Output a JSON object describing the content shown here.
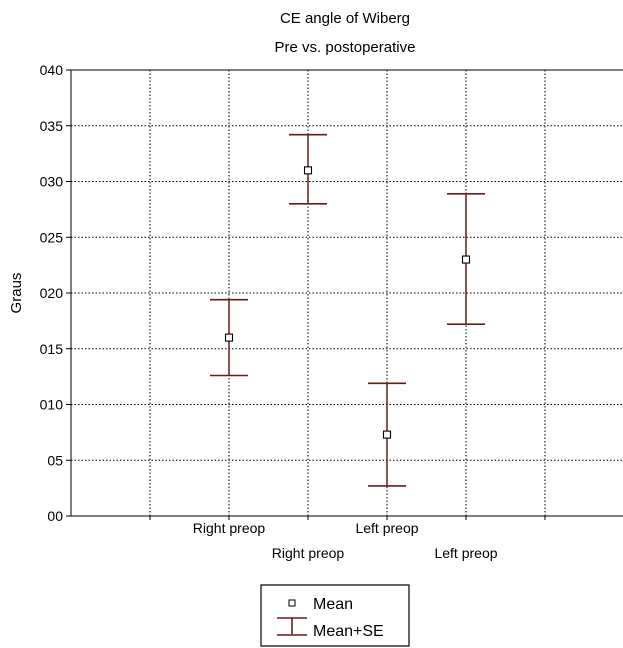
{
  "chart_data": {
    "type": "errorbar",
    "title": "CE angle of Wiberg",
    "subtitle": "Pre vs. postoperative",
    "ylabel": "Graus",
    "xlabel": "",
    "ylim": [
      0,
      40
    ],
    "yticks": [
      0,
      5,
      10,
      15,
      20,
      25,
      30,
      35,
      40
    ],
    "ytick_labels": [
      "00",
      "05",
      "010",
      "015",
      "020",
      "025",
      "030",
      "035",
      "040"
    ],
    "grid": true,
    "grid_style": "dotted",
    "x_slots": 7,
    "points": [
      {
        "category": "Right preop",
        "mean": 16.0,
        "se_low": 12.6,
        "se_high": 19.4,
        "slot": 2,
        "label_row": 1
      },
      {
        "category": "Right preop",
        "mean": 31.0,
        "se_low": 28.0,
        "se_high": 34.2,
        "slot": 3,
        "label_row": 2
      },
      {
        "category": "Left preop",
        "mean": 7.3,
        "se_low": 2.7,
        "se_high": 11.9,
        "slot": 4,
        "label_row": 1
      },
      {
        "category": "Left preop",
        "mean": 23.0,
        "se_low": 17.2,
        "se_high": 28.9,
        "slot": 5,
        "label_row": 2
      }
    ],
    "legend": {
      "position": "bottom-center",
      "items": [
        {
          "label": "Mean",
          "symbol": "square-marker"
        },
        {
          "label": "Mean+SE",
          "symbol": "whisker"
        }
      ]
    },
    "colors": {
      "whisker": "#6b1a1a",
      "marker_edge": "#000000",
      "marker_fill": "#ffffff",
      "grid": "#000000"
    }
  }
}
